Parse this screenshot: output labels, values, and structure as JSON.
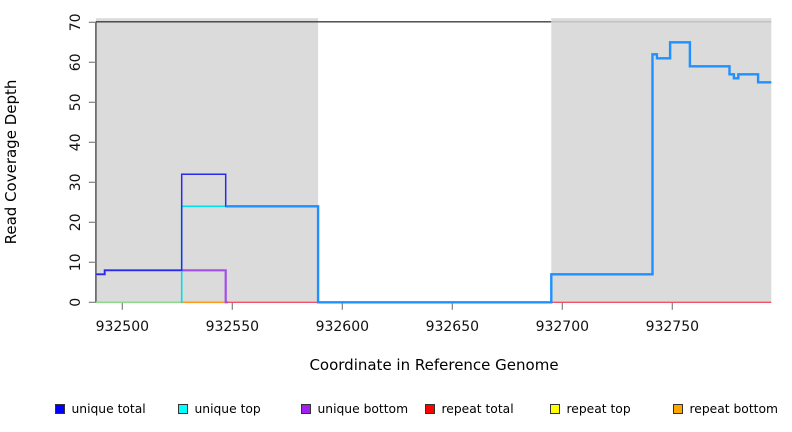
{
  "chart_data": {
    "type": "line",
    "subtype": "step-coverage-plot",
    "title": "",
    "xlabel": "Coordinate in Reference Genome",
    "ylabel": "Read Coverage Depth",
    "xlim": [
      932488,
      932795
    ],
    "ylim": [
      0,
      70
    ],
    "x_ticks": [
      932500,
      932550,
      932600,
      932650,
      932700,
      932750
    ],
    "y_ticks": [
      0,
      10,
      20,
      30,
      40,
      50,
      60,
      70
    ],
    "grid": false,
    "shaded_regions": [
      [
        932488,
        932589
      ],
      [
        932695,
        932795
      ]
    ],
    "colors": {
      "shaded": "#DBDBDB",
      "axis": "#3F3F3F",
      "tick": "#808080",
      "top_border_over_gray": "#BFBFBF",
      "legend_border": "#333333"
    },
    "legend": [
      {
        "label": "unique total",
        "color": "#0000FF"
      },
      {
        "label": "unique top",
        "color": "#00FFFF"
      },
      {
        "label": "unique bottom",
        "color": "#A020F0"
      },
      {
        "label": "repeat total",
        "color": "#FF0000"
      },
      {
        "label": "repeat top",
        "color": "#FFFF00"
      },
      {
        "label": "repeat bottom",
        "color": "#FFA500"
      }
    ],
    "series": [
      {
        "name": "unique-top-repeat-top-overlap-at-zero",
        "color": "#8FD98F",
        "width": 1.6,
        "note": "cyan and yellow lines overlapping at depth 0 render pale green",
        "points": [
          [
            932488,
            0
          ],
          [
            932527,
            0
          ]
        ]
      },
      {
        "name": "repeat-bottom",
        "color": "#FF9C1B",
        "width": 1.6,
        "points": [
          [
            932527,
            0
          ],
          [
            932547,
            0
          ]
        ]
      },
      {
        "name": "repeat-total",
        "color": "#F25268",
        "width": 1.4,
        "points": [
          [
            932547,
            0
          ],
          [
            932795,
            0
          ]
        ]
      },
      {
        "name": "unique-bottom",
        "color": "#A44FE8",
        "width": 2.2,
        "points": [
          [
            932488,
            7
          ],
          [
            932492,
            8
          ],
          [
            932547,
            0
          ],
          [
            932548,
            0
          ]
        ]
      },
      {
        "name": "unique-top",
        "color": "#00DFE8",
        "width": 1.6,
        "points": [
          [
            932526.6,
            0
          ],
          [
            932527,
            24
          ],
          [
            932589,
            24
          ]
        ]
      },
      {
        "name": "unique-total",
        "color": "#2A2AEE",
        "width": 1.5,
        "points": [
          [
            932488,
            7
          ],
          [
            932492,
            8
          ],
          [
            932527,
            32
          ],
          [
            932547,
            24
          ],
          [
            932547.6,
            24
          ]
        ]
      },
      {
        "name": "total-coverage",
        "color": "#1E90FF",
        "width": 2.4,
        "points": [
          [
            932547,
            24
          ],
          [
            932589,
            0
          ],
          [
            932695,
            7
          ],
          [
            932741,
            62
          ],
          [
            932743,
            61
          ],
          [
            932749,
            65
          ],
          [
            932758,
            59
          ],
          [
            932776,
            57
          ],
          [
            932778,
            56
          ],
          [
            932780,
            57
          ],
          [
            932789,
            55
          ],
          [
            932795,
            55
          ]
        ]
      }
    ]
  }
}
